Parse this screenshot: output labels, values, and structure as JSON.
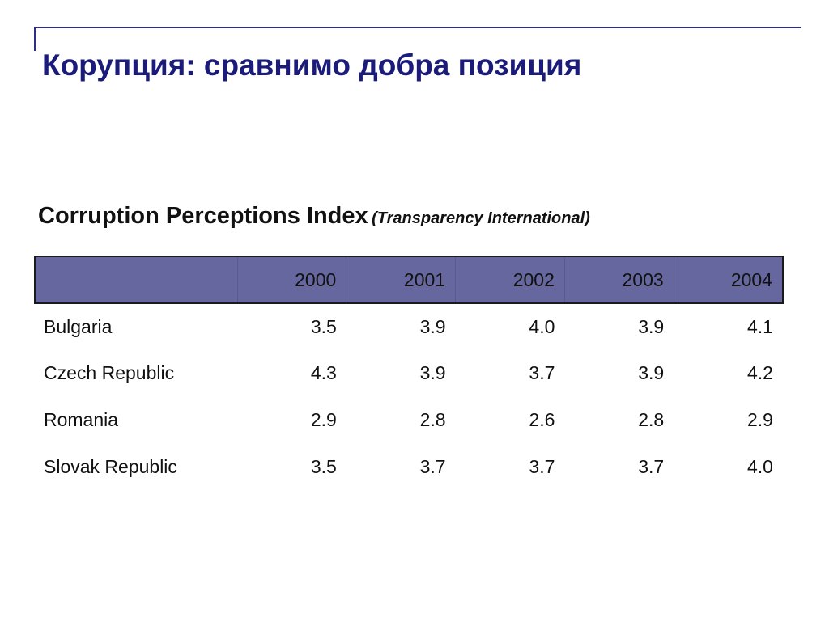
{
  "slide": {
    "title": "Корупция: сравнимо добра позиция"
  },
  "table_title": {
    "main": "Corruption Perceptions Index",
    "source": "(Transparency International)"
  },
  "table": {
    "corner_label": "",
    "years": [
      "2000",
      "2001",
      "2002",
      "2003",
      "2004"
    ],
    "rows": [
      {
        "country": "Bulgaria",
        "values": [
          "3.5",
          "3.9",
          "4.0",
          "3.9",
          "4.1"
        ]
      },
      {
        "country": "Czech Republic",
        "values": [
          "4.3",
          "3.9",
          "3.7",
          "3.9",
          "4.2"
        ]
      },
      {
        "country": "Romania",
        "values": [
          "2.9",
          "2.8",
          "2.6",
          "2.8",
          "2.9"
        ]
      },
      {
        "country": "Slovak Republic",
        "values": [
          "3.5",
          "3.7",
          "3.7",
          "3.7",
          "4.0"
        ]
      }
    ]
  },
  "colors": {
    "title": "#1b1b7a",
    "accent_line": "#2e2e8a",
    "header_fill": "#6767a0"
  }
}
